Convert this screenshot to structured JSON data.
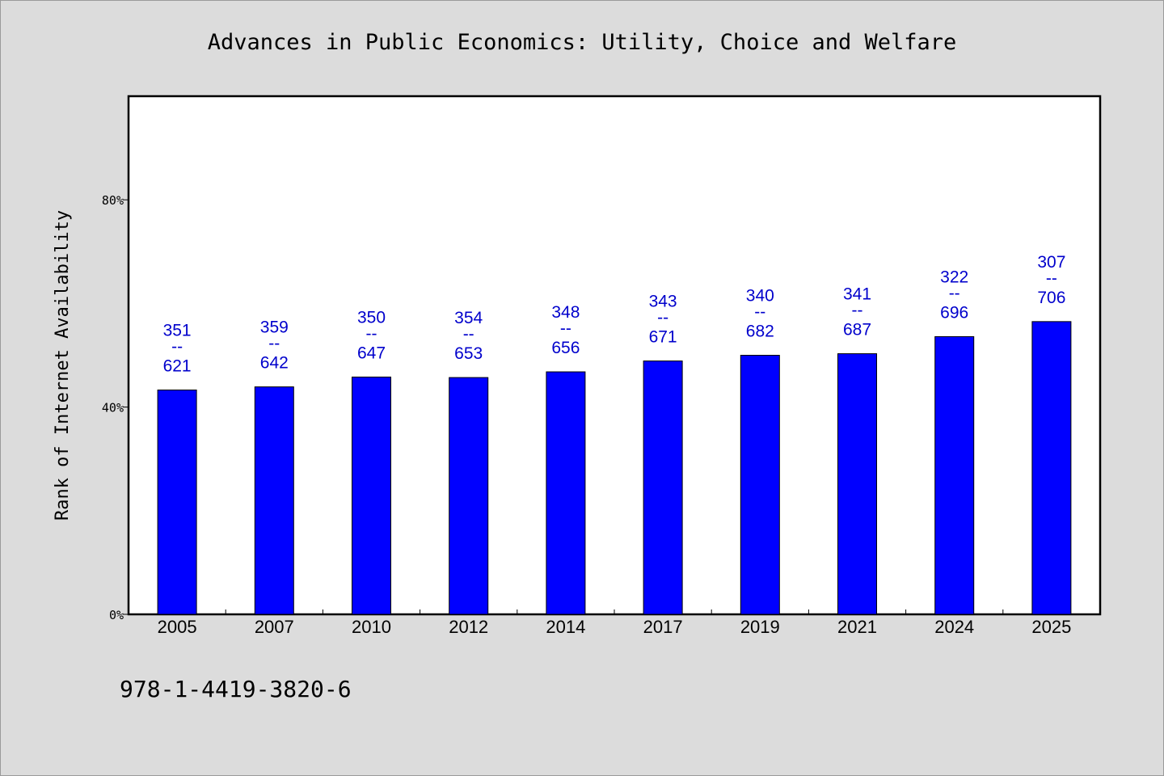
{
  "chart_data": {
    "type": "bar",
    "title": "Advances in Public Economics: Utility, Choice and Welfare",
    "ylabel": "Rank of Internet Availability",
    "xlabel": "",
    "categories": [
      "2005",
      "2007",
      "2010",
      "2012",
      "2014",
      "2017",
      "2019",
      "2021",
      "2024",
      "2025"
    ],
    "values": [
      43.3,
      43.9,
      45.8,
      45.7,
      46.8,
      48.9,
      50.0,
      50.3,
      53.6,
      56.5
    ],
    "data_labels": [
      {
        "top": "351",
        "sep": "--",
        "bottom": "621"
      },
      {
        "top": "359",
        "sep": "--",
        "bottom": "642"
      },
      {
        "top": "350",
        "sep": "--",
        "bottom": "647"
      },
      {
        "top": "354",
        "sep": "--",
        "bottom": "653"
      },
      {
        "top": "348",
        "sep": "--",
        "bottom": "656"
      },
      {
        "top": "343",
        "sep": "--",
        "bottom": "671"
      },
      {
        "top": "340",
        "sep": "--",
        "bottom": "682"
      },
      {
        "top": "341",
        "sep": "--",
        "bottom": "687"
      },
      {
        "top": "322",
        "sep": "--",
        "bottom": "696"
      },
      {
        "top": "307",
        "sep": "--",
        "bottom": "706"
      }
    ],
    "yticks": [
      0,
      40,
      80
    ],
    "ytick_labels": [
      "0%",
      "40%",
      "80%"
    ],
    "ylim": [
      0,
      100
    ],
    "grid": false,
    "legend": "none"
  },
  "footer_text": "978-1-4419-3820-6",
  "colors": {
    "bar": "#0000ff",
    "bar_edge": "#000000",
    "data_label": "#0000cc",
    "background": "#dcdcdc",
    "plot_background": "#ffffff",
    "axes": "#000000"
  }
}
